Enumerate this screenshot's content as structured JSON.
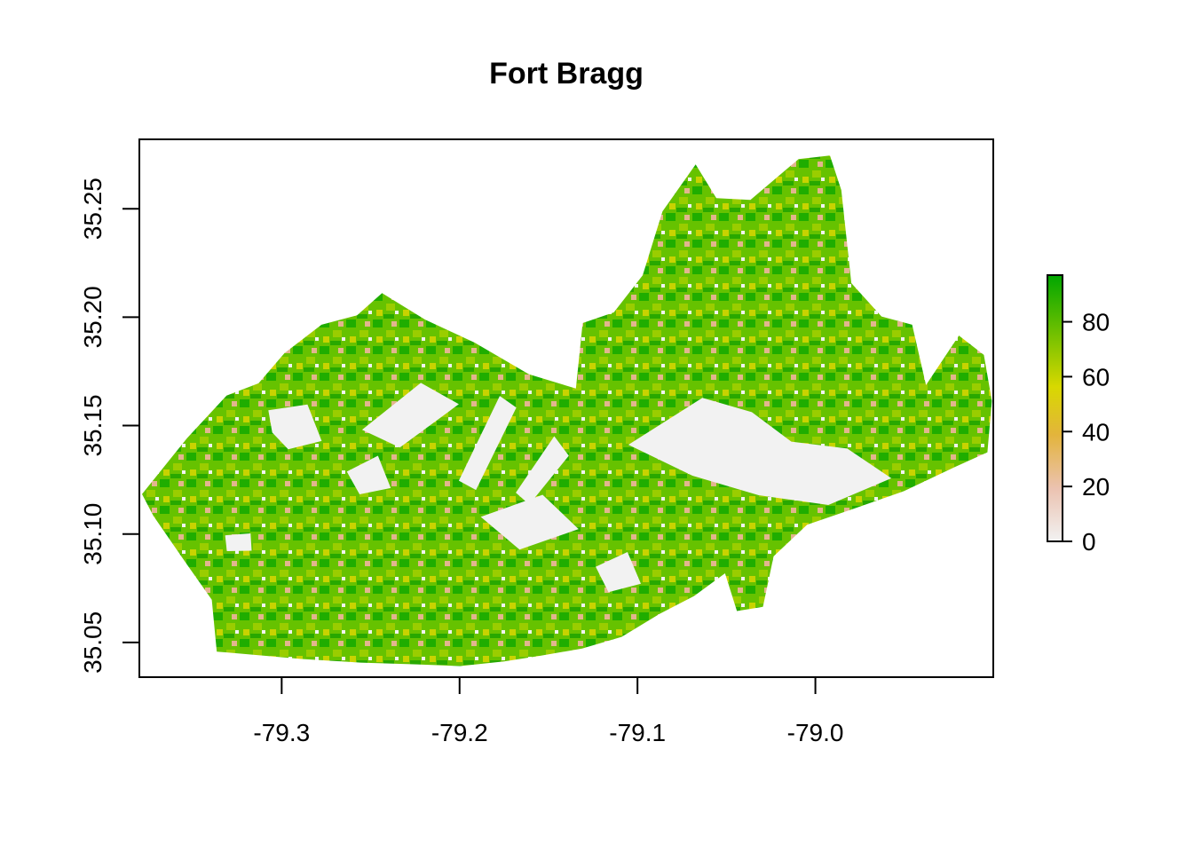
{
  "title": "Fort Bragg",
  "colors": {
    "low": "#f2f2f2",
    "mid_low": "#e8b89a",
    "mid": "#ddd417",
    "high": "#00a600",
    "nodata": "#ffffff"
  },
  "chart_data": {
    "type": "heatmap",
    "title": "Fort Bragg",
    "xlabel": "",
    "ylabel": "",
    "xlim": [
      -79.38,
      -78.9
    ],
    "ylim": [
      35.034,
      35.282
    ],
    "x_ticks": [
      "-79.3",
      "-79.2",
      "-79.1",
      "-79.0"
    ],
    "x_tick_values": [
      -79.3,
      -79.2,
      -79.1,
      -79.0
    ],
    "y_ticks": [
      "35.05",
      "35.10",
      "35.15",
      "35.20",
      "35.25"
    ],
    "y_tick_values": [
      35.05,
      35.1,
      35.15,
      35.2,
      35.25
    ],
    "legend": {
      "position": "right",
      "range": [
        0,
        97
      ],
      "ticks": [
        "0",
        "20",
        "40",
        "60",
        "80"
      ],
      "tick_values": [
        0,
        20,
        40,
        60,
        80
      ]
    },
    "boundary": [
      [
        -79.3785,
        35.1184
      ],
      [
        -79.3532,
        35.1442
      ],
      [
        -79.331,
        35.1638
      ],
      [
        -79.313,
        35.1695
      ],
      [
        -79.2984,
        35.1834
      ],
      [
        -79.2776,
        35.1965
      ],
      [
        -79.2576,
        35.2009
      ],
      [
        -79.2436,
        35.2111
      ],
      [
        -79.2194,
        35.1989
      ],
      [
        -79.1916,
        35.1883
      ],
      [
        -79.1611,
        35.1737
      ],
      [
        -79.1346,
        35.1671
      ],
      [
        -79.1308,
        35.1973
      ],
      [
        -79.1133,
        35.2022
      ],
      [
        -79.0971,
        35.2193
      ],
      [
        -79.0859,
        35.2488
      ],
      [
        -79.0673,
        35.2704
      ],
      [
        -79.0557,
        35.2549
      ],
      [
        -79.0365,
        35.2541
      ],
      [
        -79.0094,
        35.2729
      ],
      [
        -78.9918,
        35.2745
      ],
      [
        -78.9854,
        35.2586
      ],
      [
        -78.9798,
        35.2157
      ],
      [
        -78.9628,
        35.2003
      ],
      [
        -78.9456,
        35.1965
      ],
      [
        -78.9378,
        35.1687
      ],
      [
        -78.9193,
        35.1915
      ],
      [
        -78.9053,
        35.1826
      ],
      [
        -78.9008,
        35.1614
      ],
      [
        -78.9033,
        35.1377
      ],
      [
        -78.9219,
        35.1308
      ],
      [
        -78.9501,
        35.1198
      ],
      [
        -78.9787,
        35.1116
      ],
      [
        -79.0047,
        35.1043
      ],
      [
        -79.0235,
        35.0897
      ],
      [
        -79.0295,
        35.0664
      ],
      [
        -79.0441,
        35.0645
      ],
      [
        -79.0508,
        35.0819
      ],
      [
        -79.0682,
        35.0714
      ],
      [
        -79.0875,
        35.0632
      ],
      [
        -79.1089,
        35.0526
      ],
      [
        -79.1311,
        35.0472
      ],
      [
        -79.1542,
        35.0439
      ],
      [
        -79.1749,
        35.0413
      ],
      [
        -79.1997,
        35.0391
      ],
      [
        -79.2237,
        35.0399
      ],
      [
        -79.2556,
        35.0407
      ],
      [
        -79.2889,
        35.0424
      ],
      [
        -79.3365,
        35.0458
      ],
      [
        -79.3393,
        35.0697
      ],
      [
        -79.3536,
        35.0864
      ],
      [
        -79.3721,
        35.1084
      ]
    ],
    "cleared_areas": [
      [
        [
          -79.3075,
          35.1571
        ],
        [
          -79.2855,
          35.1597
        ],
        [
          -79.2775,
          35.1429
        ],
        [
          -79.2963,
          35.1391
        ],
        [
          -79.3053,
          35.1468
        ]
      ],
      [
        [
          -79.2548,
          35.1481
        ],
        [
          -79.2218,
          35.1697
        ],
        [
          -79.2004,
          35.1599
        ],
        [
          -79.2336,
          35.1399
        ]
      ],
      [
        [
          -79.2004,
          35.1246
        ],
        [
          -79.1774,
          35.1637
        ],
        [
          -79.1681,
          35.1583
        ],
        [
          -79.1908,
          35.1203
        ]
      ],
      [
        [
          -79.1684,
          35.1191
        ],
        [
          -79.1468,
          35.1451
        ],
        [
          -79.1386,
          35.1361
        ],
        [
          -79.1608,
          35.1136
        ]
      ],
      [
        [
          -79.1881,
          35.1079
        ],
        [
          -79.1533,
          35.1181
        ],
        [
          -79.1331,
          35.1023
        ],
        [
          -79.1663,
          35.0928
        ]
      ],
      [
        [
          -79.1051,
          35.1412
        ],
        [
          -79.0635,
          35.1628
        ],
        [
          -79.0357,
          35.1562
        ],
        [
          -79.0135,
          35.1426
        ],
        [
          -78.9821,
          35.1394
        ],
        [
          -78.9573,
          35.1257
        ],
        [
          -78.9927,
          35.1134
        ],
        [
          -79.0319,
          35.1179
        ],
        [
          -79.0691,
          35.1269
        ]
      ],
      [
        [
          -79.3318,
          35.0994
        ],
        [
          -79.3175,
          35.1003
        ],
        [
          -79.3169,
          35.0923
        ],
        [
          -79.3308,
          35.0921
        ]
      ],
      [
        [
          -79.1235,
          35.0849
        ],
        [
          -79.1056,
          35.0917
        ],
        [
          -79.0981,
          35.0771
        ],
        [
          -79.1163,
          35.0732
        ]
      ],
      [
        [
          -79.2634,
          35.1288
        ],
        [
          -79.2459,
          35.1361
        ],
        [
          -79.2387,
          35.1212
        ],
        [
          -79.2562,
          35.1183
        ]
      ]
    ]
  }
}
